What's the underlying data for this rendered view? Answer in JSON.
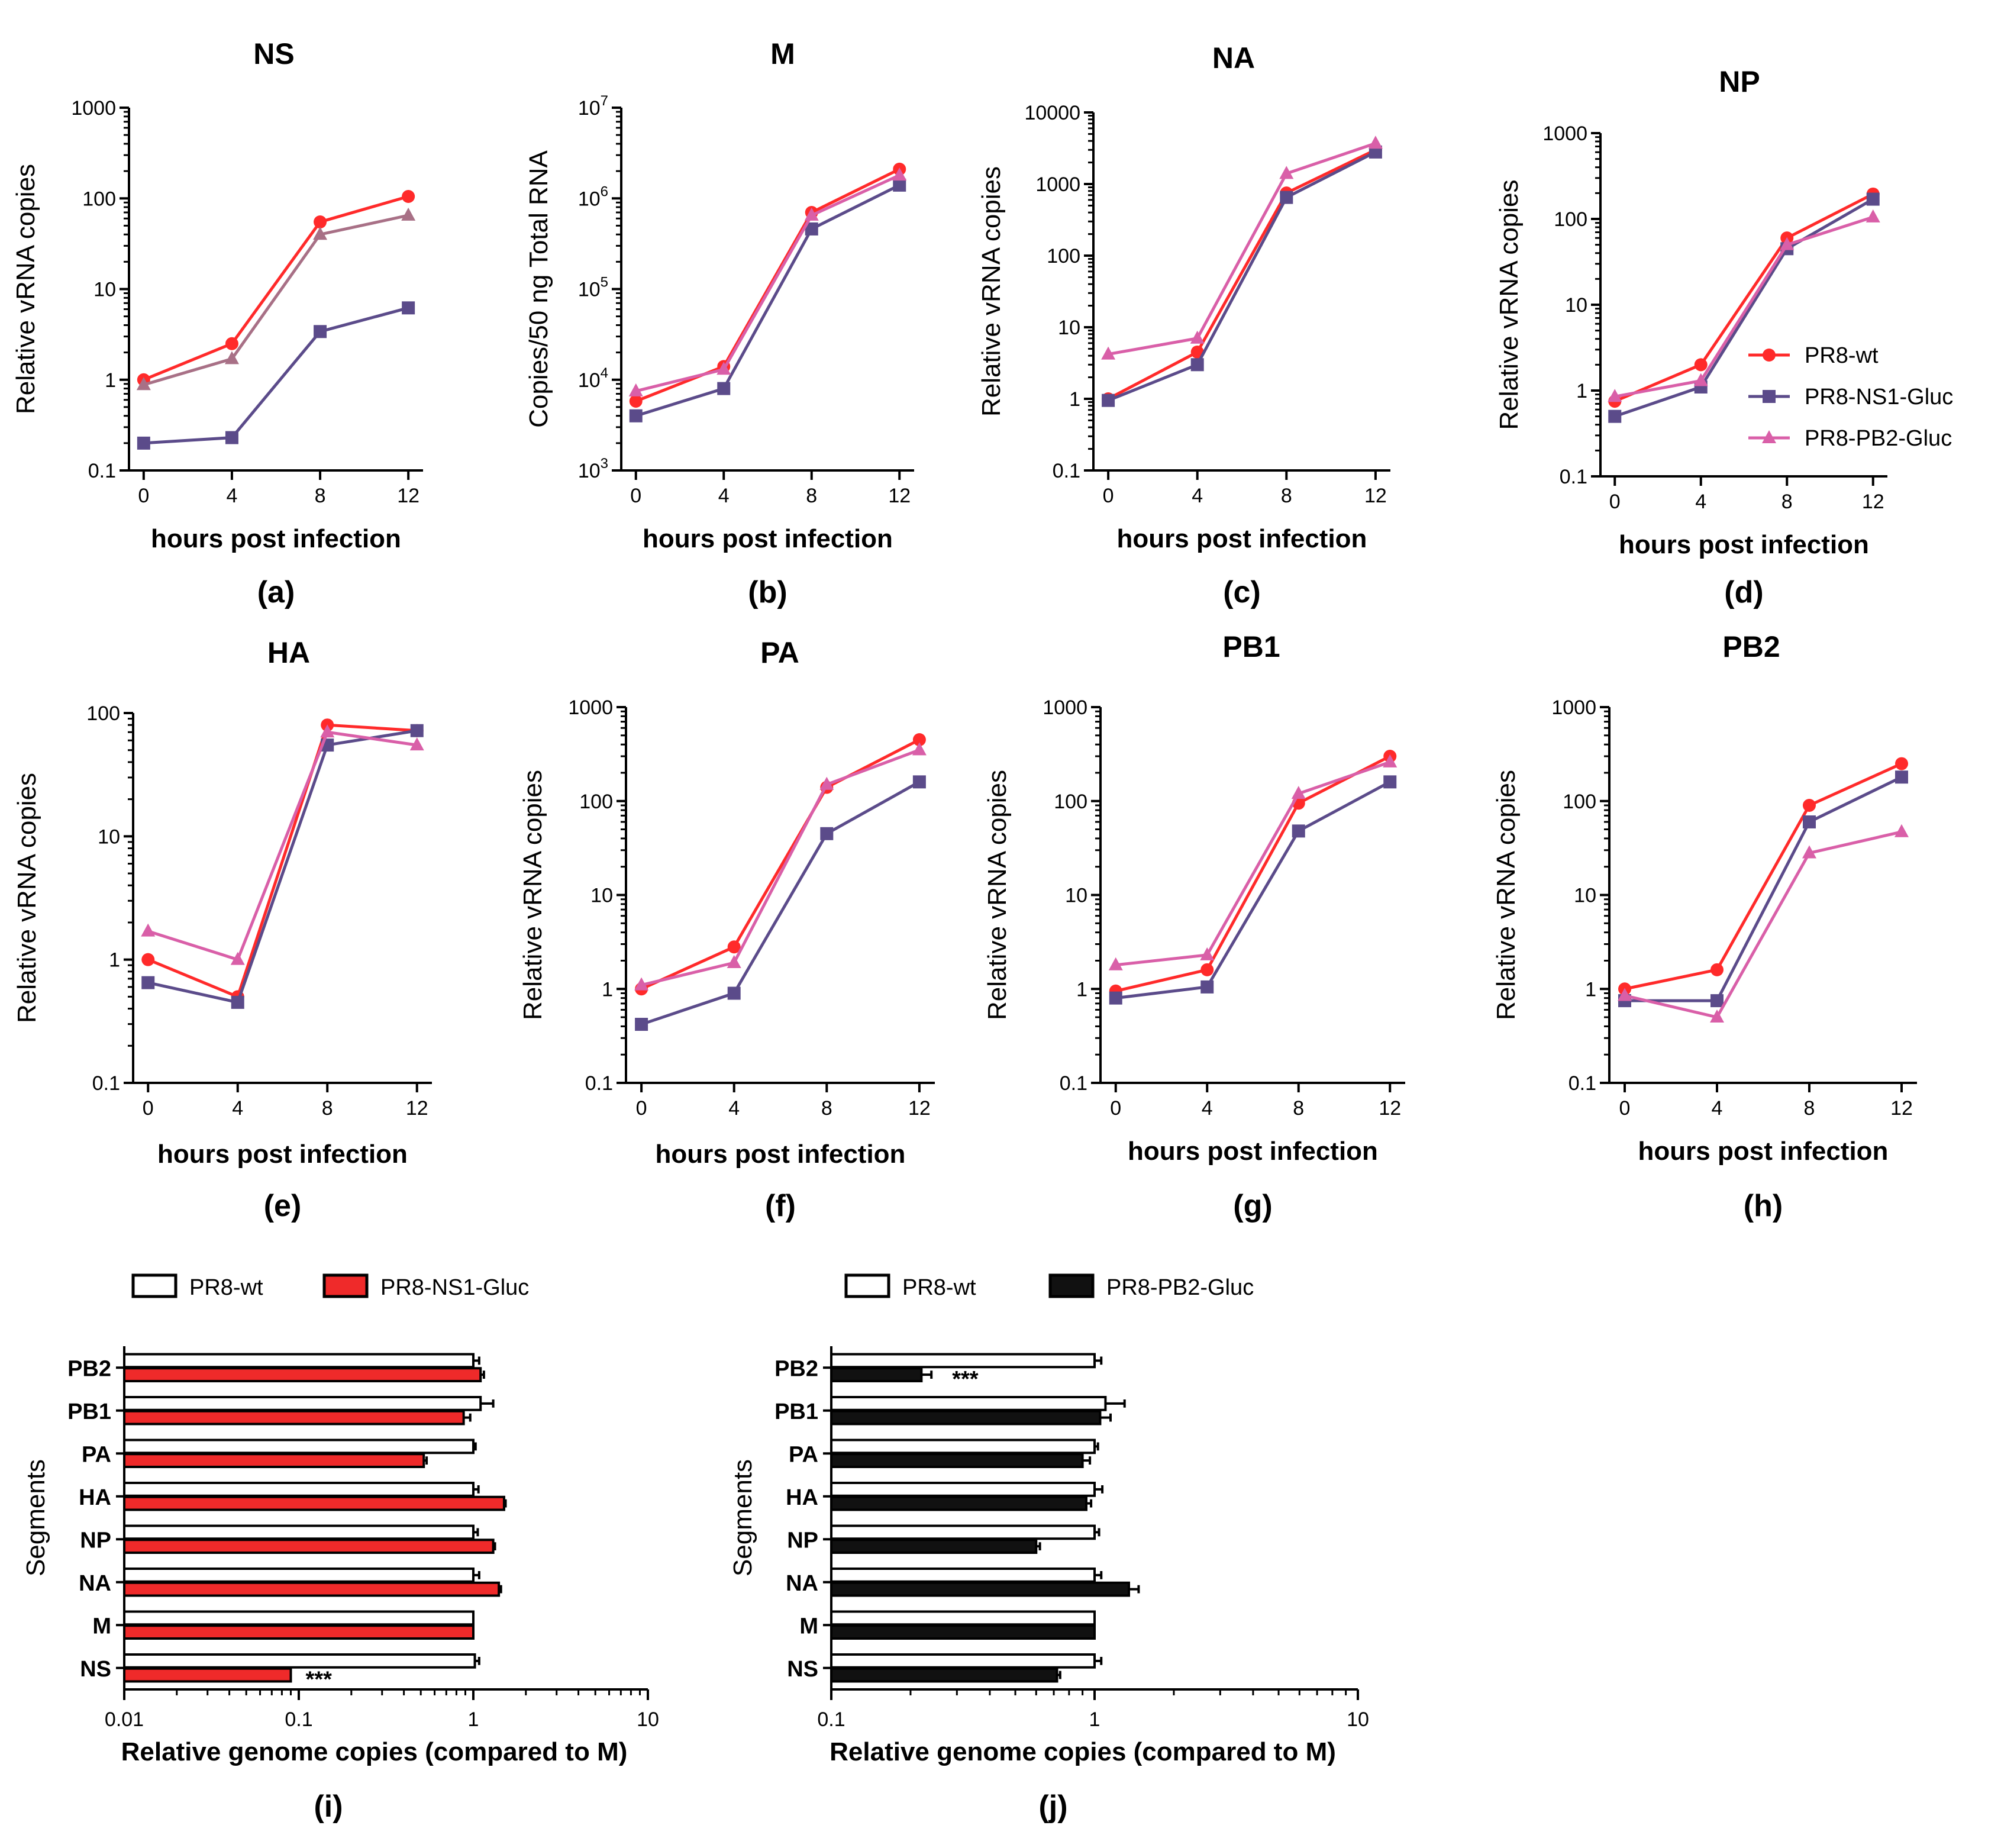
{
  "figure": {
    "colors": {
      "wt": "#ff2a2a",
      "ns1": "#5b4b8a",
      "pb2": "#d95fa8",
      "axis": "#000000",
      "barRed": "#ef2a2a",
      "barBlack": "#111111"
    },
    "markers": {
      "wt": "circle",
      "ns1": "square",
      "pb2": "triangle"
    }
  },
  "chart_data": [
    {
      "type": "line",
      "panel": "(a)",
      "title": "NS",
      "xlabel": "hours post infection",
      "ylabel": "Relative vRNA copies",
      "yscale": "log",
      "ylim": [
        0.1,
        1000
      ],
      "ytick_labels": [
        "0.1",
        "1",
        "10",
        "100",
        "1000"
      ],
      "x": [
        0,
        4,
        8,
        12
      ],
      "xtick_labels": [
        "0",
        "4",
        "8",
        "12"
      ],
      "series": [
        {
          "name": "PR8-wt",
          "values": [
            1.0,
            2.5,
            55,
            105
          ]
        },
        {
          "name": "PR8-NS1-Gluc",
          "values": [
            0.2,
            0.23,
            3.4,
            6.2
          ]
        },
        {
          "name": "PR8-PB2-Gluc",
          "values": [
            0.88,
            1.7,
            40,
            65
          ],
          "color": "#a87086"
        }
      ]
    },
    {
      "type": "line",
      "panel": "(b)",
      "title": "M",
      "xlabel": "hours post infection",
      "ylabel": "Copies/50 ng Total RNA",
      "yscale": "log",
      "ylim": [
        1000,
        10000000
      ],
      "ytick_labels": [
        "10^3",
        "10^4",
        "10^5",
        "10^6",
        "10^7"
      ],
      "x": [
        0,
        4,
        8,
        12
      ],
      "xtick_labels": [
        "0",
        "4",
        "8",
        "12"
      ],
      "series": [
        {
          "name": "PR8-wt",
          "values": [
            5800,
            14000,
            700000,
            2100000
          ]
        },
        {
          "name": "PR8-NS1-Gluc",
          "values": [
            4000,
            8000,
            460000,
            1400000
          ]
        },
        {
          "name": "PR8-PB2-Gluc",
          "values": [
            7500,
            13000,
            650000,
            1800000
          ]
        }
      ]
    },
    {
      "type": "line",
      "panel": "(c)",
      "title": "NA",
      "xlabel": "hours post infection",
      "ylabel": "Relative vRNA copies",
      "yscale": "log",
      "ylim": [
        0.1,
        10000
      ],
      "ytick_labels": [
        "0.1",
        "1",
        "10",
        "100",
        "1000",
        "10000"
      ],
      "x": [
        0,
        4,
        8,
        12
      ],
      "xtick_labels": [
        "0",
        "4",
        "8",
        "12"
      ],
      "series": [
        {
          "name": "PR8-wt",
          "values": [
            1.0,
            4.5,
            750,
            3000
          ]
        },
        {
          "name": "PR8-NS1-Gluc",
          "values": [
            0.95,
            3.0,
            650,
            2800
          ]
        },
        {
          "name": "PR8-PB2-Gluc",
          "values": [
            4.2,
            7.0,
            1400,
            3700
          ]
        }
      ]
    },
    {
      "type": "line",
      "panel": "(d)",
      "title": "NP",
      "xlabel": "hours post infection",
      "ylabel": "Relative vRNA copies",
      "yscale": "log",
      "ylim": [
        0.1,
        1000
      ],
      "ytick_labels": [
        "0.1",
        "1",
        "10",
        "100",
        "1000"
      ],
      "x": [
        0,
        4,
        8,
        12
      ],
      "xtick_labels": [
        "0",
        "4",
        "8",
        "12"
      ],
      "legend": [
        "PR8-wt",
        "PR8-NS1-Gluc",
        "PR8-PB2-Gluc"
      ],
      "legend_position": "bottom-right",
      "series": [
        {
          "name": "PR8-wt",
          "values": [
            0.75,
            2.0,
            60,
            195
          ]
        },
        {
          "name": "PR8-NS1-Gluc",
          "values": [
            0.5,
            1.1,
            45,
            170
          ]
        },
        {
          "name": "PR8-PB2-Gluc",
          "values": [
            0.85,
            1.3,
            50,
            105
          ]
        }
      ]
    },
    {
      "type": "line",
      "panel": "(e)",
      "title": "HA",
      "xlabel": "hours post infection",
      "ylabel": "Relative vRNA copies",
      "yscale": "log",
      "ylim": [
        0.1,
        100
      ],
      "ytick_labels": [
        "0.1",
        "1",
        "10",
        "100"
      ],
      "x": [
        0,
        4,
        8,
        12
      ],
      "xtick_labels": [
        "0",
        "4",
        "8",
        "12"
      ],
      "series": [
        {
          "name": "PR8-wt",
          "values": [
            1.0,
            0.5,
            80,
            72
          ]
        },
        {
          "name": "PR8-NS1-Gluc",
          "values": [
            0.65,
            0.45,
            55,
            72
          ]
        },
        {
          "name": "PR8-PB2-Gluc",
          "values": [
            1.7,
            1.0,
            70,
            55
          ]
        }
      ]
    },
    {
      "type": "line",
      "panel": "(f)",
      "title": "PA",
      "xlabel": "hours post infection",
      "ylabel": "Relative vRNA copies",
      "yscale": "log",
      "ylim": [
        0.1,
        1000
      ],
      "ytick_labels": [
        "0.1",
        "1",
        "10",
        "100",
        "1000"
      ],
      "x": [
        0,
        4,
        8,
        12
      ],
      "xtick_labels": [
        "0",
        "4",
        "8",
        "12"
      ],
      "series": [
        {
          "name": "PR8-wt",
          "values": [
            1.0,
            2.8,
            140,
            450
          ]
        },
        {
          "name": "PR8-NS1-Gluc",
          "values": [
            0.42,
            0.9,
            45,
            160
          ]
        },
        {
          "name": "PR8-PB2-Gluc",
          "values": [
            1.1,
            1.9,
            150,
            350
          ]
        }
      ]
    },
    {
      "type": "line",
      "panel": "(g)",
      "title": "PB1",
      "xlabel": "hours post infection",
      "ylabel": "Relative vRNA copies",
      "yscale": "log",
      "ylim": [
        0.1,
        1000
      ],
      "ytick_labels": [
        "0.1",
        "1",
        "10",
        "100",
        "1000"
      ],
      "x": [
        0,
        4,
        8,
        12
      ],
      "xtick_labels": [
        "0",
        "4",
        "8",
        "12"
      ],
      "series": [
        {
          "name": "PR8-wt",
          "values": [
            0.95,
            1.6,
            95,
            300
          ]
        },
        {
          "name": "PR8-NS1-Gluc",
          "values": [
            0.8,
            1.05,
            48,
            160
          ]
        },
        {
          "name": "PR8-PB2-Gluc",
          "values": [
            1.8,
            2.3,
            120,
            260
          ]
        }
      ]
    },
    {
      "type": "line",
      "panel": "(h)",
      "title": "PB2",
      "xlabel": "hours post infection",
      "ylabel": "Relative vRNA copies",
      "yscale": "log",
      "ylim": [
        0.1,
        1000
      ],
      "ytick_labels": [
        "0.1",
        "1",
        "10",
        "100",
        "1000"
      ],
      "x": [
        0,
        4,
        8,
        12
      ],
      "xtick_labels": [
        "0",
        "4",
        "8",
        "12"
      ],
      "series": [
        {
          "name": "PR8-wt",
          "values": [
            1.0,
            1.6,
            90,
            250
          ]
        },
        {
          "name": "PR8-NS1-Gluc",
          "values": [
            0.75,
            0.75,
            60,
            180
          ]
        },
        {
          "name": "PR8-PB2-Gluc",
          "values": [
            0.85,
            0.5,
            28,
            47
          ]
        }
      ]
    },
    {
      "type": "bar",
      "orientation": "horizontal",
      "panel": "(i)",
      "xlabel": "Relative genome copies (compared to M)",
      "ylabel": "Segments",
      "xscale": "log",
      "xlim": [
        0.01,
        10
      ],
      "xtick_labels": [
        "0.01",
        "0.1",
        "1",
        "10"
      ],
      "categories": [
        "PB2",
        "PB1",
        "PA",
        "HA",
        "NP",
        "NA",
        "M",
        "NS"
      ],
      "legend": [
        "PR8-wt",
        "PR8-NS1-Gluc"
      ],
      "legend_position": "top",
      "series": [
        {
          "name": "PR8-wt",
          "fill": "white",
          "values": [
            1.0,
            1.1,
            1.0,
            1.0,
            1.0,
            1.0,
            1.0,
            1.02
          ],
          "errors": [
            0.08,
            0.2,
            0.03,
            0.07,
            0.06,
            0.08,
            0.0,
            0.06
          ]
        },
        {
          "name": "PR8-NS1-Gluc",
          "fill": "red",
          "values": [
            1.1,
            0.88,
            0.52,
            1.5,
            1.3,
            1.4,
            1.0,
            0.09
          ],
          "errors": [
            0.05,
            0.08,
            0.02,
            0.03,
            0.03,
            0.04,
            0.0,
            0.0
          ]
        }
      ],
      "annotations": [
        {
          "category": "NS",
          "text": "***"
        }
      ]
    },
    {
      "type": "bar",
      "orientation": "horizontal",
      "panel": "(j)",
      "xlabel": "Relative genome copies (compared to M)",
      "ylabel": "Segments",
      "xscale": "log",
      "xlim": [
        0.1,
        10
      ],
      "xtick_labels": [
        "0.1",
        "1",
        "10"
      ],
      "categories": [
        "PB2",
        "PB1",
        "PA",
        "HA",
        "NP",
        "NA",
        "M",
        "NS"
      ],
      "legend": [
        "PR8-wt",
        "PR8-PB2-Gluc"
      ],
      "legend_position": "top",
      "series": [
        {
          "name": "PR8-wt",
          "fill": "white",
          "values": [
            1.0,
            1.1,
            1.0,
            1.0,
            1.0,
            1.0,
            1.0,
            1.0
          ],
          "errors": [
            0.06,
            0.2,
            0.03,
            0.07,
            0.04,
            0.06,
            0.0,
            0.06
          ]
        },
        {
          "name": "PR8-PB2-Gluc",
          "fill": "black",
          "values": [
            0.22,
            1.05,
            0.9,
            0.93,
            0.6,
            1.35,
            1.0,
            0.72
          ],
          "errors": [
            0.02,
            0.1,
            0.06,
            0.04,
            0.02,
            0.12,
            0.0,
            0.02
          ]
        }
      ],
      "annotations": [
        {
          "category": "PB2",
          "text": "***"
        }
      ]
    }
  ]
}
